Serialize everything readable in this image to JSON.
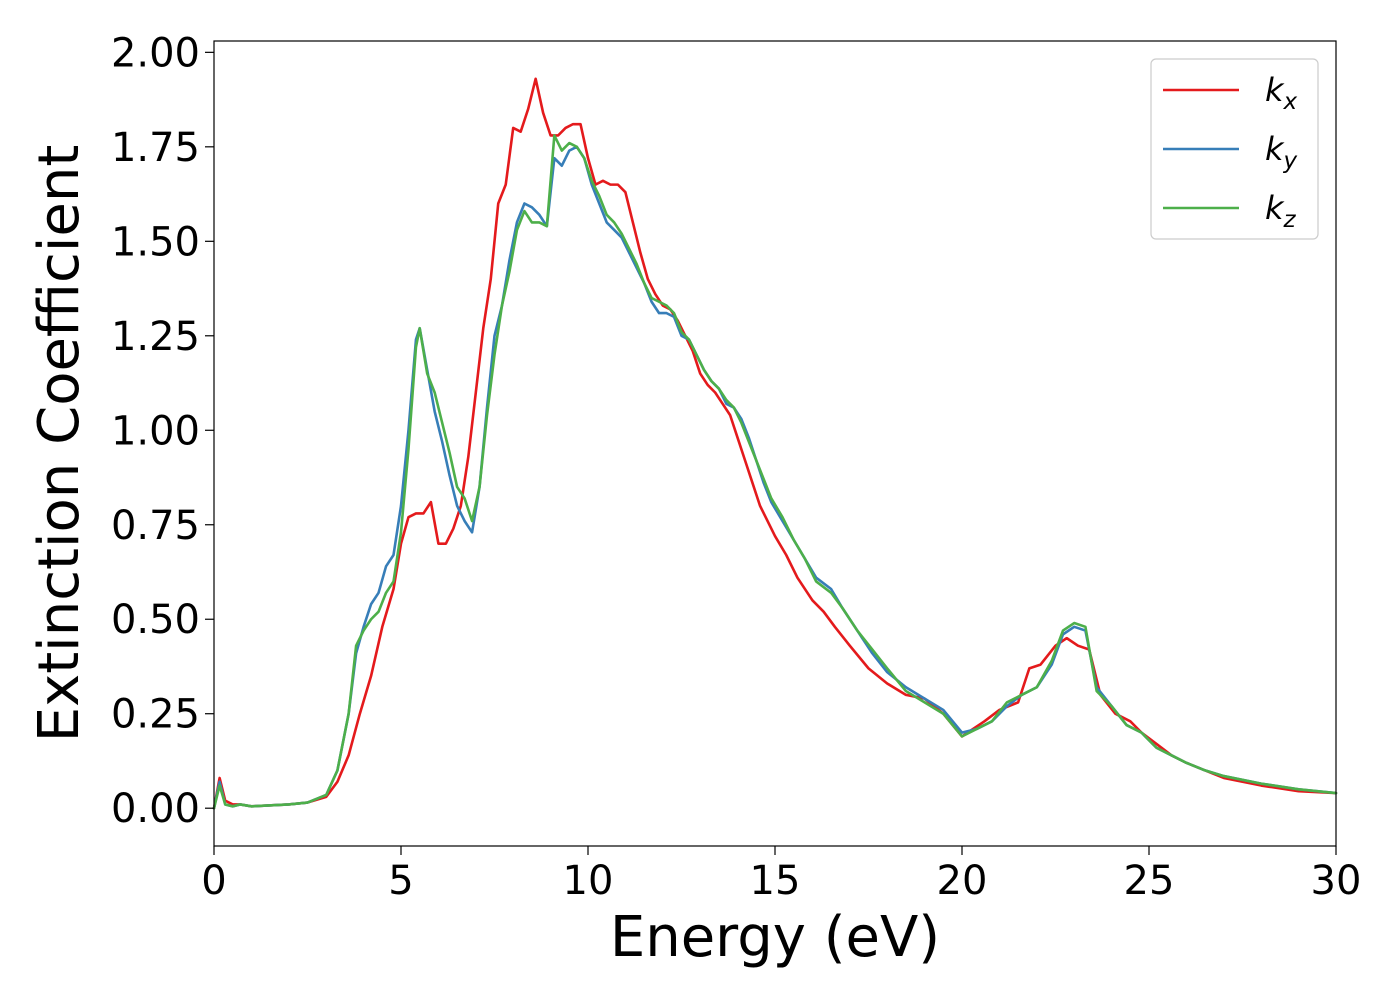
{
  "chart_data": {
    "type": "line",
    "title": "",
    "xlabel": "Energy (eV)",
    "ylabel": "Extinction Coefficient",
    "xlim": [
      0,
      30
    ],
    "ylim": [
      -0.1,
      2.03
    ],
    "xticks": [
      0,
      5,
      10,
      15,
      20,
      25,
      30
    ],
    "xtick_labels": [
      "0",
      "5",
      "10",
      "15",
      "20",
      "25",
      "30"
    ],
    "yticks": [
      0,
      0.25,
      0.5,
      0.75,
      1.0,
      1.25,
      1.5,
      1.75,
      2.0
    ],
    "ytick_labels": [
      "0.00",
      "0.25",
      "0.50",
      "0.75",
      "1.00",
      "1.25",
      "1.50",
      "1.75",
      "2.00"
    ],
    "grid": false,
    "legend_position": "top-right",
    "series": [
      {
        "name": "kx",
        "label_base": "k",
        "label_sub": "x",
        "color": "#e41a1c",
        "points": [
          [
            0,
            0
          ],
          [
            0.15,
            0.08
          ],
          [
            0.3,
            0.02
          ],
          [
            0.5,
            0.01
          ],
          [
            0.7,
            0.01
          ],
          [
            1,
            0.005
          ],
          [
            2,
            0.01
          ],
          [
            2.5,
            0.015
          ],
          [
            3,
            0.03
          ],
          [
            3.3,
            0.07
          ],
          [
            3.6,
            0.14
          ],
          [
            3.9,
            0.25
          ],
          [
            4.2,
            0.35
          ],
          [
            4.5,
            0.48
          ],
          [
            4.8,
            0.58
          ],
          [
            5.0,
            0.7
          ],
          [
            5.2,
            0.77
          ],
          [
            5.4,
            0.78
          ],
          [
            5.6,
            0.78
          ],
          [
            5.8,
            0.81
          ],
          [
            6.0,
            0.7
          ],
          [
            6.2,
            0.7
          ],
          [
            6.4,
            0.74
          ],
          [
            6.6,
            0.8
          ],
          [
            6.8,
            0.93
          ],
          [
            7.0,
            1.1
          ],
          [
            7.2,
            1.27
          ],
          [
            7.4,
            1.4
          ],
          [
            7.6,
            1.6
          ],
          [
            7.8,
            1.65
          ],
          [
            8.0,
            1.8
          ],
          [
            8.2,
            1.79
          ],
          [
            8.4,
            1.85
          ],
          [
            8.6,
            1.93
          ],
          [
            8.8,
            1.84
          ],
          [
            9.0,
            1.78
          ],
          [
            9.2,
            1.78
          ],
          [
            9.4,
            1.8
          ],
          [
            9.6,
            1.81
          ],
          [
            9.8,
            1.81
          ],
          [
            10.0,
            1.72
          ],
          [
            10.2,
            1.65
          ],
          [
            10.4,
            1.66
          ],
          [
            10.6,
            1.65
          ],
          [
            10.8,
            1.65
          ],
          [
            11.0,
            1.63
          ],
          [
            11.2,
            1.55
          ],
          [
            11.4,
            1.47
          ],
          [
            11.6,
            1.4
          ],
          [
            11.8,
            1.36
          ],
          [
            12.0,
            1.33
          ],
          [
            12.2,
            1.32
          ],
          [
            12.4,
            1.29
          ],
          [
            12.6,
            1.25
          ],
          [
            12.8,
            1.21
          ],
          [
            13.0,
            1.15
          ],
          [
            13.2,
            1.12
          ],
          [
            13.4,
            1.1
          ],
          [
            13.6,
            1.07
          ],
          [
            13.8,
            1.04
          ],
          [
            14.0,
            0.98
          ],
          [
            14.2,
            0.92
          ],
          [
            14.4,
            0.86
          ],
          [
            14.6,
            0.8
          ],
          [
            14.8,
            0.76
          ],
          [
            15.0,
            0.72
          ],
          [
            15.3,
            0.67
          ],
          [
            15.6,
            0.61
          ],
          [
            16.0,
            0.55
          ],
          [
            16.3,
            0.52
          ],
          [
            16.6,
            0.48
          ],
          [
            17.0,
            0.43
          ],
          [
            17.5,
            0.37
          ],
          [
            18.0,
            0.33
          ],
          [
            18.5,
            0.3
          ],
          [
            19.0,
            0.29
          ],
          [
            19.5,
            0.25
          ],
          [
            20.0,
            0.19
          ],
          [
            20.3,
            0.21
          ],
          [
            20.6,
            0.23
          ],
          [
            21.0,
            0.26
          ],
          [
            21.5,
            0.28
          ],
          [
            21.8,
            0.37
          ],
          [
            22.1,
            0.38
          ],
          [
            22.5,
            0.43
          ],
          [
            22.8,
            0.45
          ],
          [
            23.1,
            0.43
          ],
          [
            23.4,
            0.42
          ],
          [
            23.7,
            0.3
          ],
          [
            24.1,
            0.25
          ],
          [
            24.5,
            0.23
          ],
          [
            24.8,
            0.2
          ],
          [
            25.2,
            0.17
          ],
          [
            25.6,
            0.14
          ],
          [
            26.0,
            0.12
          ],
          [
            26.5,
            0.1
          ],
          [
            27.0,
            0.08
          ],
          [
            28.0,
            0.06
          ],
          [
            29.0,
            0.045
          ],
          [
            30.0,
            0.04
          ]
        ]
      },
      {
        "name": "ky",
        "label_base": "k",
        "label_sub": "y",
        "color": "#377eb8",
        "points": [
          [
            0,
            0
          ],
          [
            0.15,
            0.07
          ],
          [
            0.3,
            0.01
          ],
          [
            0.5,
            0.005
          ],
          [
            0.7,
            0.01
          ],
          [
            1,
            0.005
          ],
          [
            2,
            0.01
          ],
          [
            2.5,
            0.015
          ],
          [
            3,
            0.035
          ],
          [
            3.3,
            0.1
          ],
          [
            3.6,
            0.25
          ],
          [
            3.8,
            0.41
          ],
          [
            4.0,
            0.48
          ],
          [
            4.2,
            0.54
          ],
          [
            4.4,
            0.57
          ],
          [
            4.6,
            0.64
          ],
          [
            4.8,
            0.67
          ],
          [
            5.0,
            0.8
          ],
          [
            5.2,
            1.0
          ],
          [
            5.4,
            1.24
          ],
          [
            5.5,
            1.27
          ],
          [
            5.7,
            1.16
          ],
          [
            5.9,
            1.05
          ],
          [
            6.1,
            0.97
          ],
          [
            6.3,
            0.88
          ],
          [
            6.5,
            0.8
          ],
          [
            6.7,
            0.76
          ],
          [
            6.9,
            0.73
          ],
          [
            7.1,
            0.85
          ],
          [
            7.3,
            1.06
          ],
          [
            7.5,
            1.25
          ],
          [
            7.7,
            1.33
          ],
          [
            7.9,
            1.45
          ],
          [
            8.1,
            1.55
          ],
          [
            8.3,
            1.6
          ],
          [
            8.5,
            1.59
          ],
          [
            8.7,
            1.57
          ],
          [
            8.9,
            1.54
          ],
          [
            9.1,
            1.72
          ],
          [
            9.3,
            1.7
          ],
          [
            9.5,
            1.74
          ],
          [
            9.7,
            1.75
          ],
          [
            9.9,
            1.72
          ],
          [
            10.1,
            1.65
          ],
          [
            10.3,
            1.6
          ],
          [
            10.5,
            1.55
          ],
          [
            10.7,
            1.53
          ],
          [
            10.9,
            1.51
          ],
          [
            11.1,
            1.47
          ],
          [
            11.3,
            1.43
          ],
          [
            11.5,
            1.39
          ],
          [
            11.7,
            1.34
          ],
          [
            11.9,
            1.31
          ],
          [
            12.1,
            1.31
          ],
          [
            12.3,
            1.3
          ],
          [
            12.5,
            1.25
          ],
          [
            12.7,
            1.24
          ],
          [
            12.9,
            1.2
          ],
          [
            13.1,
            1.16
          ],
          [
            13.3,
            1.13
          ],
          [
            13.5,
            1.11
          ],
          [
            13.7,
            1.07
          ],
          [
            13.9,
            1.06
          ],
          [
            14.1,
            1.03
          ],
          [
            14.3,
            0.98
          ],
          [
            14.5,
            0.92
          ],
          [
            14.7,
            0.86
          ],
          [
            14.9,
            0.81
          ],
          [
            15.2,
            0.76
          ],
          [
            15.5,
            0.71
          ],
          [
            15.8,
            0.66
          ],
          [
            16.1,
            0.61
          ],
          [
            16.5,
            0.58
          ],
          [
            16.8,
            0.53
          ],
          [
            17.2,
            0.47
          ],
          [
            17.6,
            0.41
          ],
          [
            18.0,
            0.36
          ],
          [
            18.5,
            0.32
          ],
          [
            19.0,
            0.29
          ],
          [
            19.5,
            0.26
          ],
          [
            20.0,
            0.2
          ],
          [
            20.4,
            0.21
          ],
          [
            20.8,
            0.23
          ],
          [
            21.2,
            0.27
          ],
          [
            21.6,
            0.3
          ],
          [
            22.0,
            0.32
          ],
          [
            22.4,
            0.38
          ],
          [
            22.7,
            0.46
          ],
          [
            23.0,
            0.48
          ],
          [
            23.3,
            0.47
          ],
          [
            23.6,
            0.32
          ],
          [
            24.0,
            0.27
          ],
          [
            24.4,
            0.22
          ],
          [
            24.8,
            0.2
          ],
          [
            25.2,
            0.16
          ],
          [
            25.6,
            0.14
          ],
          [
            26.0,
            0.12
          ],
          [
            26.5,
            0.1
          ],
          [
            27.0,
            0.085
          ],
          [
            28.0,
            0.065
          ],
          [
            29.0,
            0.05
          ],
          [
            30.0,
            0.04
          ]
        ]
      },
      {
        "name": "kz",
        "label_base": "k",
        "label_sub": "z",
        "color": "#4daf4a",
        "points": [
          [
            0,
            0
          ],
          [
            0.15,
            0.06
          ],
          [
            0.3,
            0.01
          ],
          [
            0.5,
            0.005
          ],
          [
            0.7,
            0.01
          ],
          [
            1,
            0.005
          ],
          [
            2,
            0.01
          ],
          [
            2.5,
            0.015
          ],
          [
            3,
            0.035
          ],
          [
            3.3,
            0.1
          ],
          [
            3.6,
            0.25
          ],
          [
            3.8,
            0.43
          ],
          [
            4.0,
            0.47
          ],
          [
            4.2,
            0.5
          ],
          [
            4.4,
            0.52
          ],
          [
            4.6,
            0.57
          ],
          [
            4.8,
            0.6
          ],
          [
            5.0,
            0.73
          ],
          [
            5.2,
            0.95
          ],
          [
            5.4,
            1.22
          ],
          [
            5.5,
            1.27
          ],
          [
            5.7,
            1.15
          ],
          [
            5.9,
            1.1
          ],
          [
            6.1,
            1.02
          ],
          [
            6.3,
            0.94
          ],
          [
            6.5,
            0.85
          ],
          [
            6.7,
            0.82
          ],
          [
            6.9,
            0.76
          ],
          [
            7.1,
            0.85
          ],
          [
            7.3,
            1.04
          ],
          [
            7.5,
            1.2
          ],
          [
            7.7,
            1.33
          ],
          [
            7.9,
            1.42
          ],
          [
            8.1,
            1.53
          ],
          [
            8.3,
            1.58
          ],
          [
            8.5,
            1.55
          ],
          [
            8.7,
            1.55
          ],
          [
            8.9,
            1.54
          ],
          [
            9.1,
            1.78
          ],
          [
            9.3,
            1.74
          ],
          [
            9.5,
            1.76
          ],
          [
            9.7,
            1.75
          ],
          [
            9.9,
            1.72
          ],
          [
            10.1,
            1.66
          ],
          [
            10.3,
            1.62
          ],
          [
            10.5,
            1.57
          ],
          [
            10.7,
            1.55
          ],
          [
            10.9,
            1.52
          ],
          [
            11.1,
            1.48
          ],
          [
            11.3,
            1.44
          ],
          [
            11.5,
            1.39
          ],
          [
            11.7,
            1.35
          ],
          [
            11.9,
            1.34
          ],
          [
            12.1,
            1.33
          ],
          [
            12.3,
            1.31
          ],
          [
            12.5,
            1.26
          ],
          [
            12.7,
            1.24
          ],
          [
            12.9,
            1.2
          ],
          [
            13.1,
            1.16
          ],
          [
            13.3,
            1.13
          ],
          [
            13.5,
            1.11
          ],
          [
            13.7,
            1.08
          ],
          [
            13.9,
            1.06
          ],
          [
            14.1,
            1.02
          ],
          [
            14.3,
            0.97
          ],
          [
            14.5,
            0.92
          ],
          [
            14.7,
            0.87
          ],
          [
            14.9,
            0.82
          ],
          [
            15.2,
            0.77
          ],
          [
            15.5,
            0.71
          ],
          [
            15.8,
            0.66
          ],
          [
            16.1,
            0.6
          ],
          [
            16.5,
            0.57
          ],
          [
            16.8,
            0.53
          ],
          [
            17.2,
            0.47
          ],
          [
            17.6,
            0.42
          ],
          [
            18.0,
            0.37
          ],
          [
            18.5,
            0.31
          ],
          [
            19.0,
            0.28
          ],
          [
            19.5,
            0.25
          ],
          [
            20.0,
            0.19
          ],
          [
            20.4,
            0.21
          ],
          [
            20.8,
            0.23
          ],
          [
            21.2,
            0.28
          ],
          [
            21.6,
            0.3
          ],
          [
            22.0,
            0.32
          ],
          [
            22.4,
            0.39
          ],
          [
            22.7,
            0.47
          ],
          [
            23.0,
            0.49
          ],
          [
            23.3,
            0.48
          ],
          [
            23.6,
            0.31
          ],
          [
            24.0,
            0.27
          ],
          [
            24.4,
            0.22
          ],
          [
            24.8,
            0.2
          ],
          [
            25.2,
            0.16
          ],
          [
            25.6,
            0.14
          ],
          [
            26.0,
            0.12
          ],
          [
            26.5,
            0.1
          ],
          [
            27.0,
            0.085
          ],
          [
            28.0,
            0.065
          ],
          [
            29.0,
            0.05
          ],
          [
            30.0,
            0.04
          ]
        ]
      }
    ]
  }
}
